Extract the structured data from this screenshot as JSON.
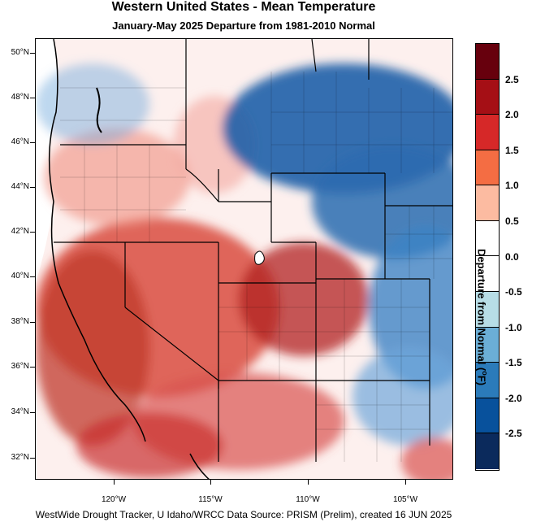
{
  "title": "Western United States - Mean Temperature",
  "subtitle": "January-May 2025  Departure from 1981-2010 Normal",
  "footer": "WestWide Drought Tracker, U Idaho/WRCC Data Source: PRISM (Prelim), created 16 JUN 2025",
  "axes": {
    "lat_labels": [
      "50°N",
      "48°N",
      "46°N",
      "44°N",
      "42°N",
      "40°N",
      "38°N",
      "36°N",
      "34°N",
      "32°N"
    ],
    "lon_labels": [
      "120°W",
      "115°W",
      "110°W",
      "105°W"
    ]
  },
  "colorbar": {
    "title_prefix": "Departure from Normal (",
    "title_unit_sup": "o",
    "title_suffix": "F)",
    "tick_labels": [
      "2.5",
      "2.0",
      "1.5",
      "1.0",
      "0.5",
      "0.0",
      "-0.5",
      "-1.0",
      "-1.5",
      "-2.0",
      "-2.5"
    ],
    "colors": [
      "#67000d",
      "#a50f15",
      "#d62828",
      "#f46d43",
      "#fcbba1",
      "#ffffff",
      "#ffffff",
      "#b7dde6",
      "#6baed6",
      "#2b7bba",
      "#08519c",
      "#0b2a5c"
    ]
  },
  "map_data": {
    "region": "Western United States",
    "variable": "Mean temperature departure (°F), January-May 2025",
    "lat_range": [
      31,
      50.5
    ],
    "lon_range": [
      -124.5,
      -102.5
    ],
    "pattern": "warm (red) across Southwest, Great Basin and southern Rockies; cool (blue) across Montana, Wyoming, northern Plains and eastern Colorado/New Mexico"
  }
}
